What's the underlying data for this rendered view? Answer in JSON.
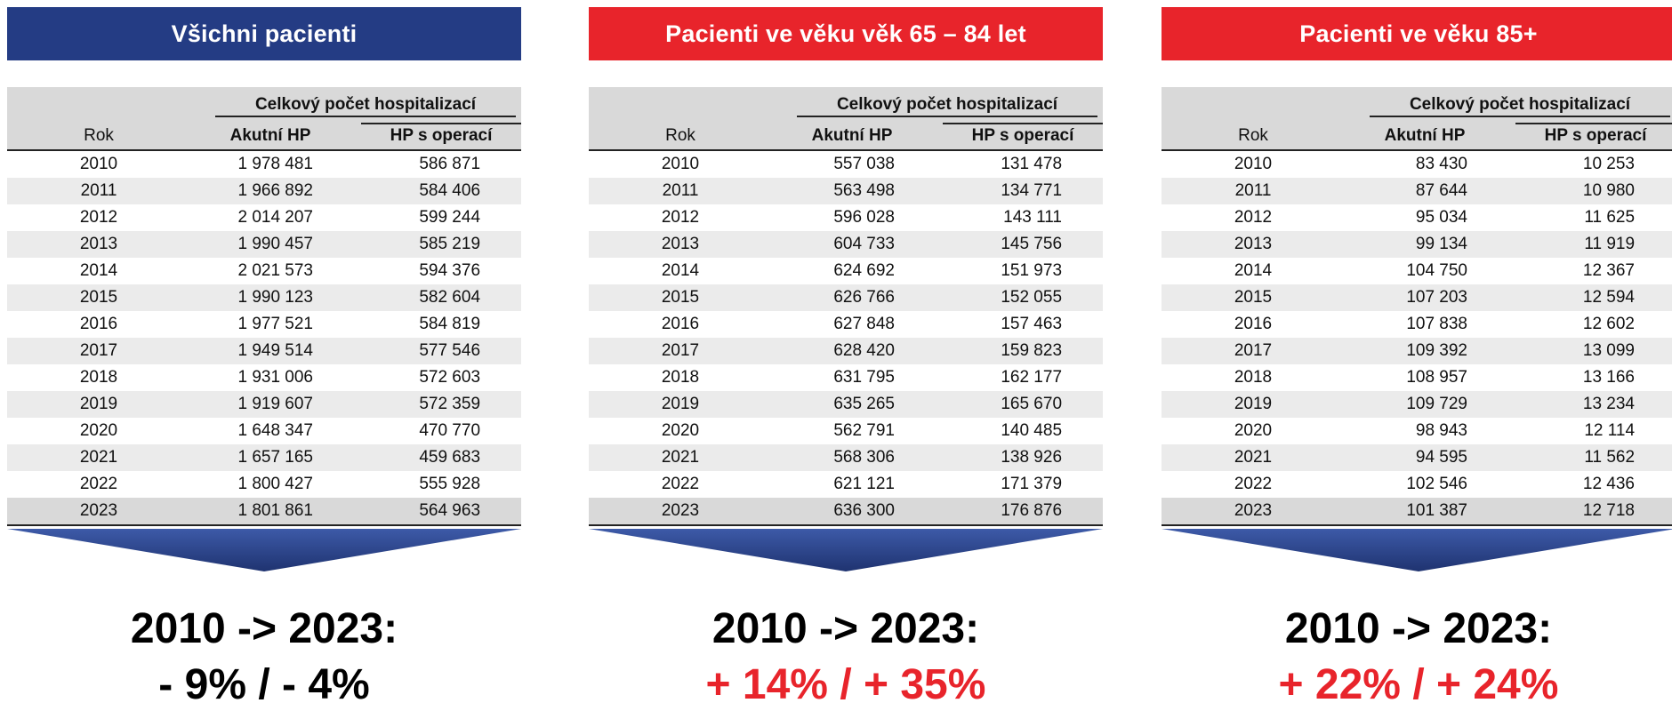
{
  "colors": {
    "blue": "#243c84",
    "red": "#e8242b",
    "negative": "#000000",
    "positive": "#e8242b"
  },
  "headers": {
    "group": "Celkový počet hospitalizací",
    "rok": "Rok",
    "akutni": "Akutní HP",
    "operace": "HP s operací"
  },
  "summary_label": "2010 -> 2023:",
  "panels": [
    {
      "title": "Všichni pacienti",
      "banner_color": "#243c84",
      "change": "- 9% / - 4%",
      "change_color": "#000000",
      "rows": [
        [
          "2010",
          "1 978 481",
          "586 871"
        ],
        [
          "2011",
          "1 966 892",
          "584 406"
        ],
        [
          "2012",
          "2 014 207",
          "599 244"
        ],
        [
          "2013",
          "1 990 457",
          "585 219"
        ],
        [
          "2014",
          "2 021 573",
          "594 376"
        ],
        [
          "2015",
          "1 990 123",
          "582 604"
        ],
        [
          "2016",
          "1 977 521",
          "584 819"
        ],
        [
          "2017",
          "1 949 514",
          "577 546"
        ],
        [
          "2018",
          "1 931 006",
          "572 603"
        ],
        [
          "2019",
          "1 919 607",
          "572 359"
        ],
        [
          "2020",
          "1 648 347",
          "470 770"
        ],
        [
          "2021",
          "1 657 165",
          "459 683"
        ],
        [
          "2022",
          "1 800 427",
          "555 928"
        ],
        [
          "2023",
          "1 801 861",
          "564 963"
        ]
      ]
    },
    {
      "title": "Pacienti ve věku věk 65 – 84 let",
      "banner_color": "#e8242b",
      "change": "+ 14% / + 35%",
      "change_color": "#e8242b",
      "rows": [
        [
          "2010",
          "557 038",
          "131 478"
        ],
        [
          "2011",
          "563 498",
          "134 771"
        ],
        [
          "2012",
          "596 028",
          "143 111"
        ],
        [
          "2013",
          "604 733",
          "145 756"
        ],
        [
          "2014",
          "624 692",
          "151 973"
        ],
        [
          "2015",
          "626 766",
          "152 055"
        ],
        [
          "2016",
          "627 848",
          "157 463"
        ],
        [
          "2017",
          "628 420",
          "159 823"
        ],
        [
          "2018",
          "631 795",
          "162 177"
        ],
        [
          "2019",
          "635 265",
          "165 670"
        ],
        [
          "2020",
          "562 791",
          "140 485"
        ],
        [
          "2021",
          "568 306",
          "138 926"
        ],
        [
          "2022",
          "621 121",
          "171 379"
        ],
        [
          "2023",
          "636 300",
          "176 876"
        ]
      ]
    },
    {
      "title": "Pacienti ve věku 85+",
      "banner_color": "#e8242b",
      "change": "+ 22% / + 24%",
      "change_color": "#e8242b",
      "rows": [
        [
          "2010",
          "83 430",
          "10 253"
        ],
        [
          "2011",
          "87 644",
          "10 980"
        ],
        [
          "2012",
          "95 034",
          "11 625"
        ],
        [
          "2013",
          "99 134",
          "11 919"
        ],
        [
          "2014",
          "104 750",
          "12 367"
        ],
        [
          "2015",
          "107 203",
          "12 594"
        ],
        [
          "2016",
          "107 838",
          "12 602"
        ],
        [
          "2017",
          "109 392",
          "13 099"
        ],
        [
          "2018",
          "108 957",
          "13 166"
        ],
        [
          "2019",
          "109 729",
          "13 234"
        ],
        [
          "2020",
          "98 943",
          "12 114"
        ],
        [
          "2021",
          "94 595",
          "11 562"
        ],
        [
          "2022",
          "102 546",
          "12 436"
        ],
        [
          "2023",
          "101 387",
          "12 718"
        ]
      ]
    }
  ]
}
